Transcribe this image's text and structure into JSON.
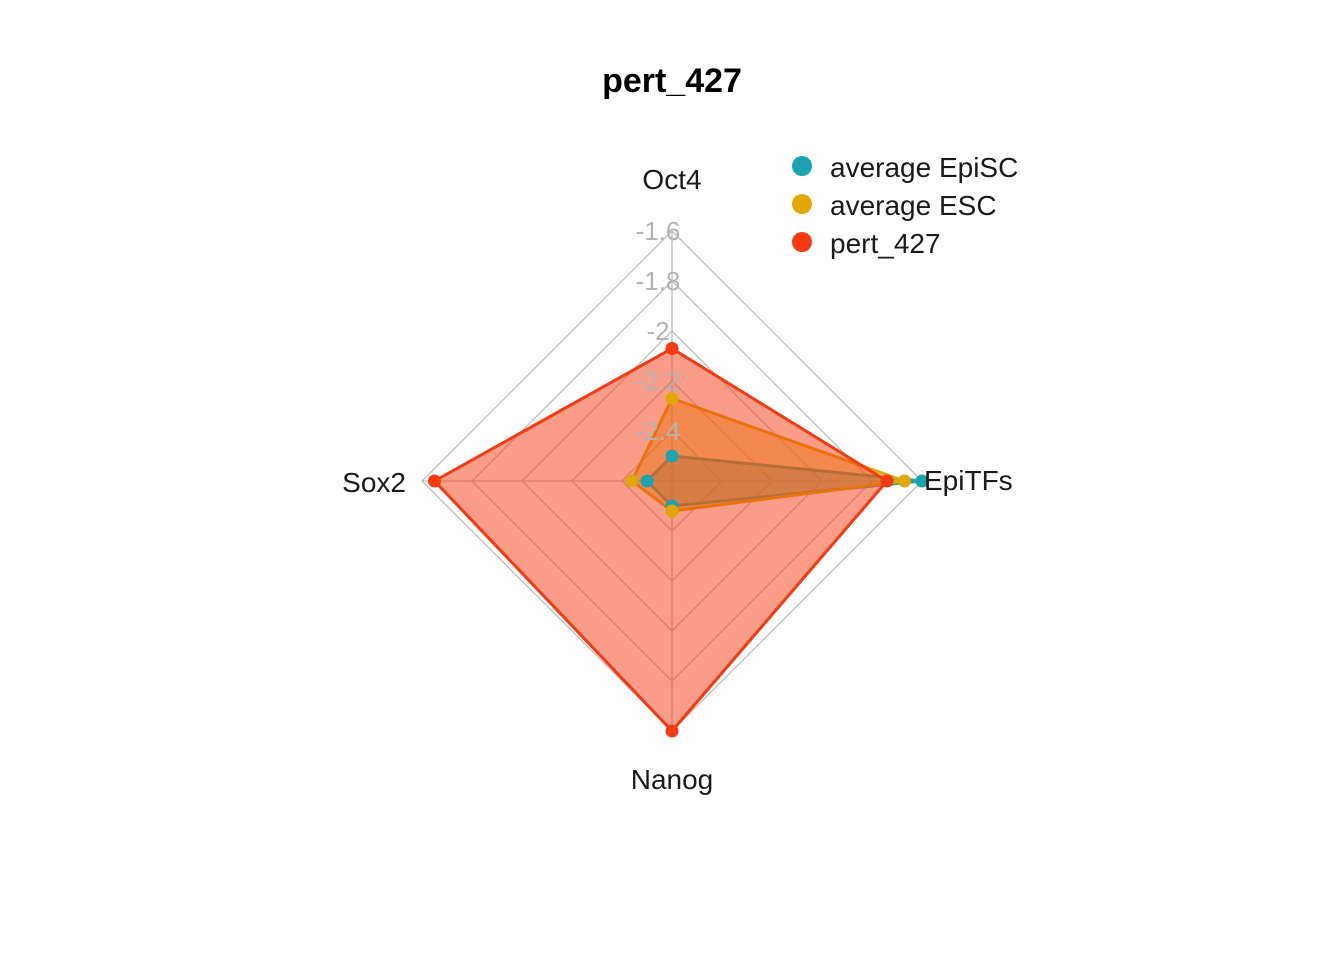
{
  "chart_data": {
    "type": "radar",
    "title": "pert_427",
    "axes": [
      "Oct4",
      "EpiTFs",
      "Nanog",
      "Sox2"
    ],
    "radial_ticks": [
      "-1.6",
      "-1.8",
      "-2",
      "-2.2",
      "-2.4"
    ],
    "rlim": [
      -2.6,
      -1.6
    ],
    "grid": true,
    "legend_position": "top-right",
    "series": [
      {
        "name": "average EpiSC",
        "color": "#1BA3B0",
        "values": [
          -2.5,
          -1.6,
          -2.5,
          -2.5
        ]
      },
      {
        "name": "average ESC",
        "color": "#E3A800",
        "values": [
          -2.27,
          -1.67,
          -2.48,
          -2.44
        ]
      },
      {
        "name": "pert_427",
        "color": "#F33A11",
        "values": [
          -2.07,
          -1.74,
          -1.6,
          -1.65
        ]
      }
    ]
  }
}
